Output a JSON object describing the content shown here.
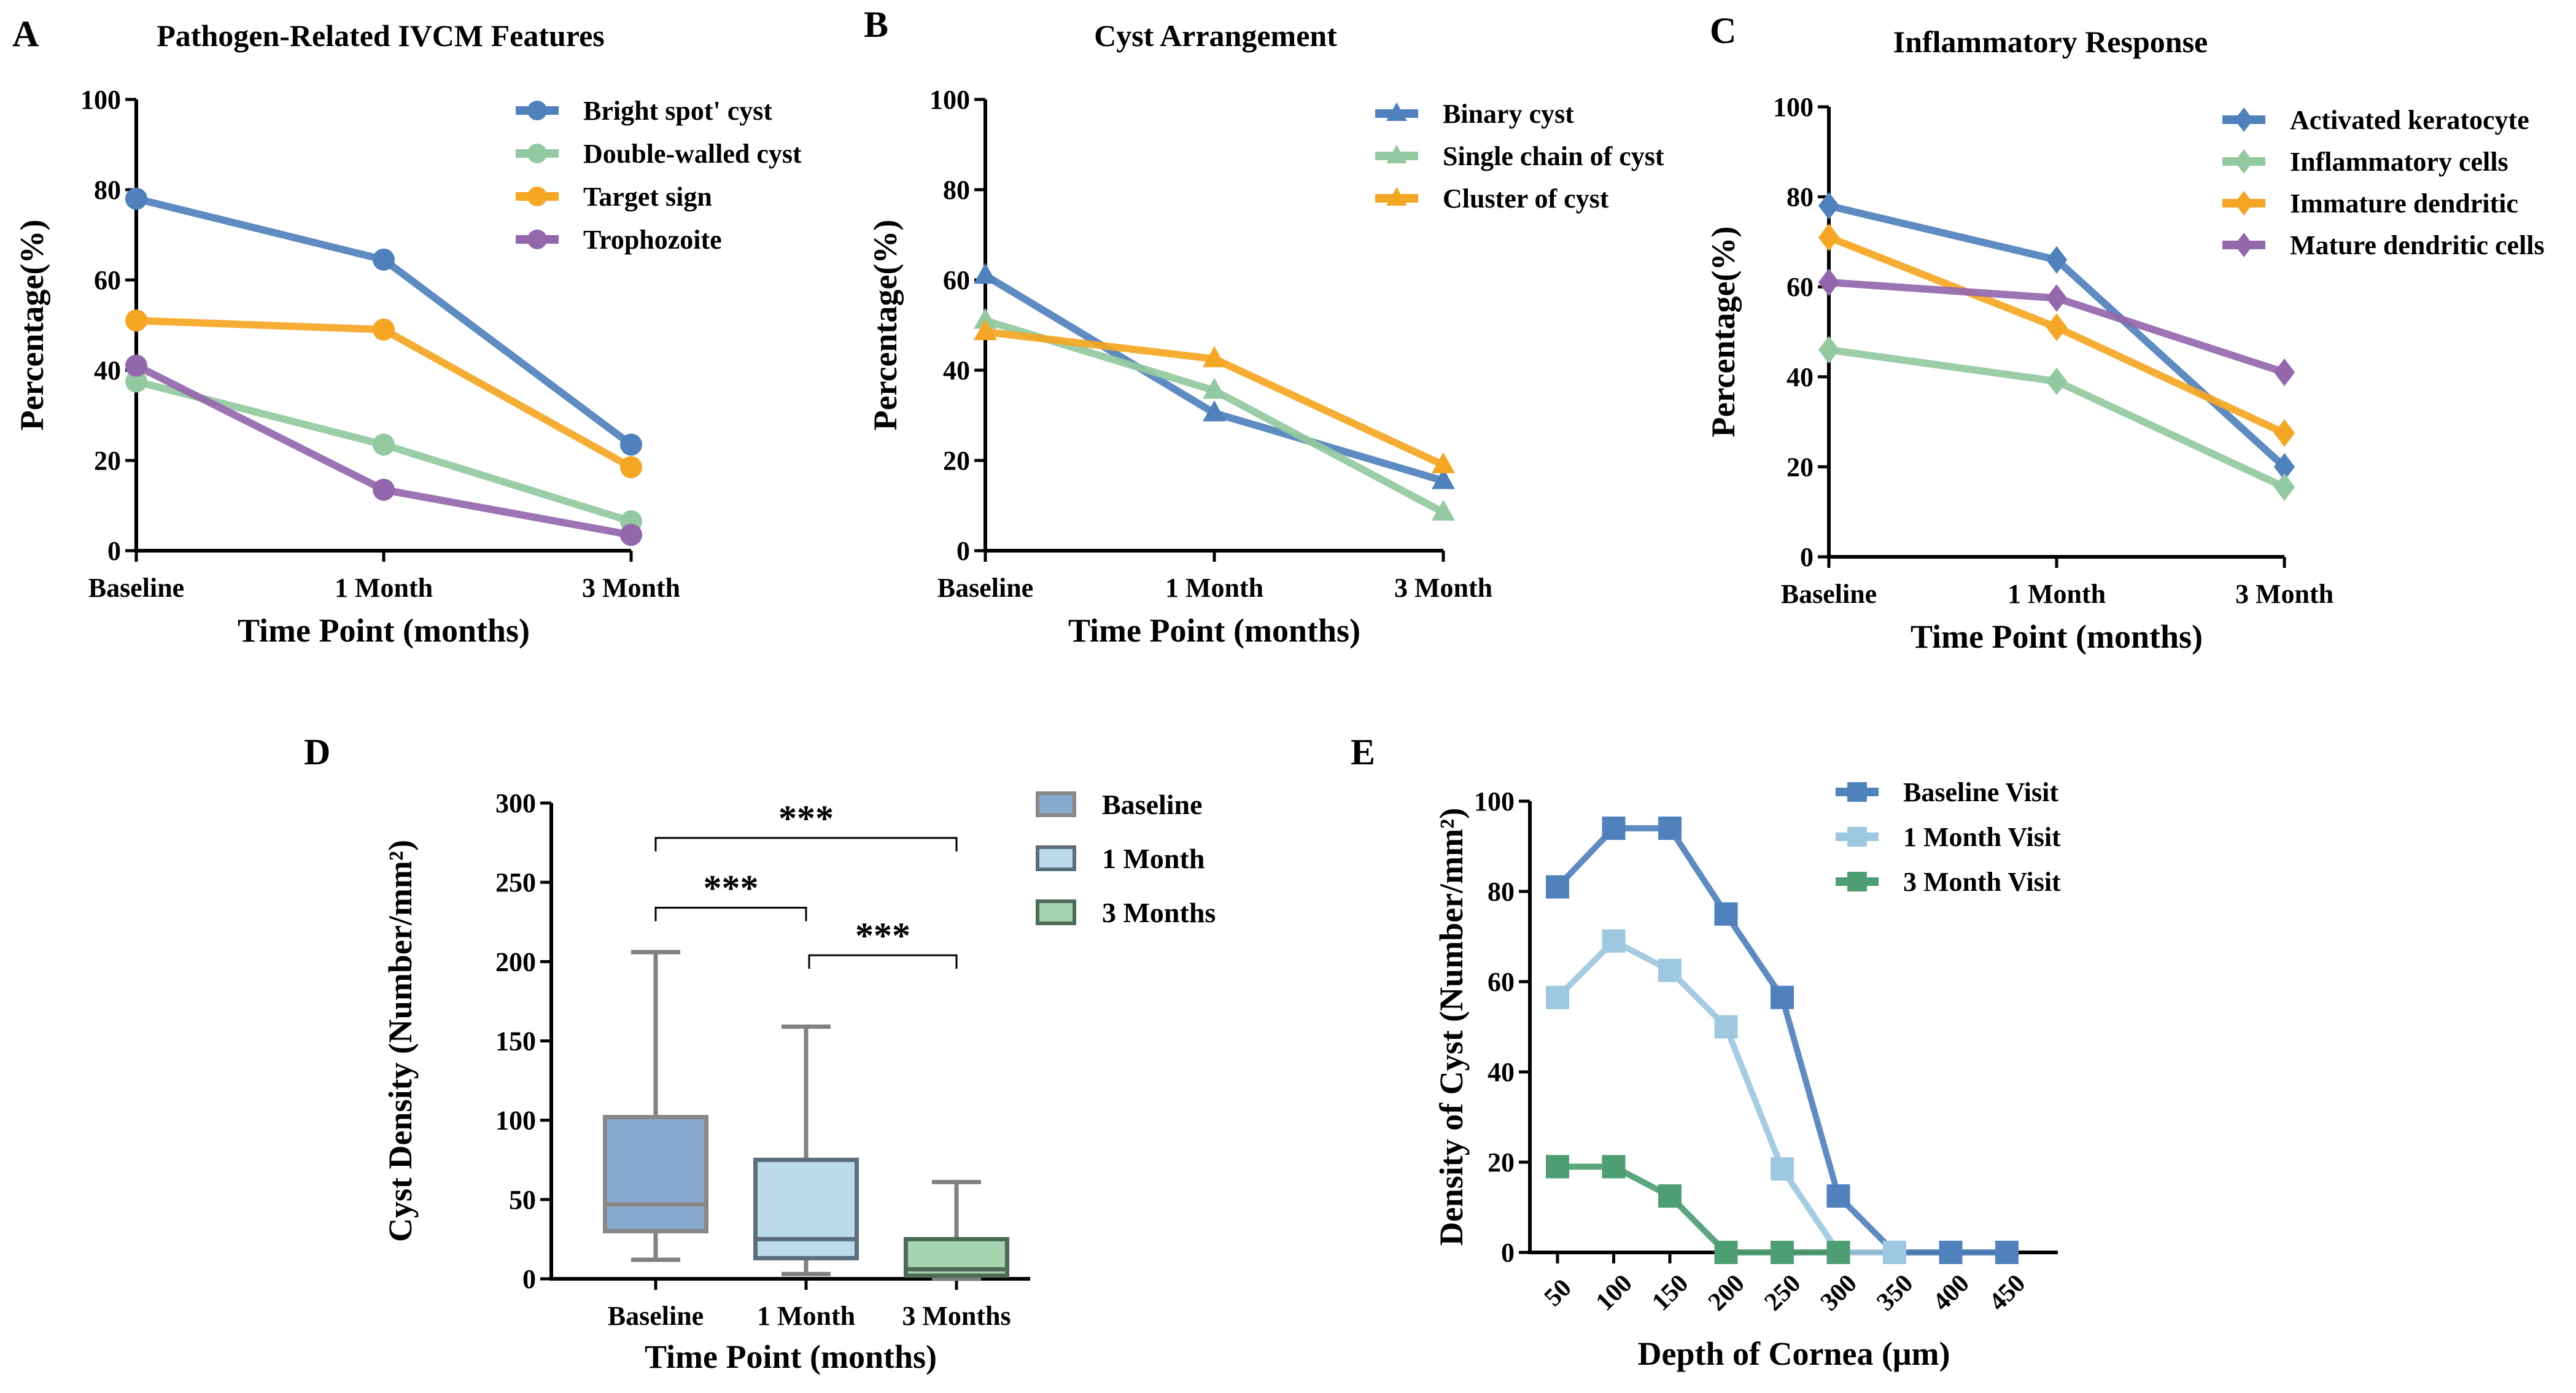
{
  "chart_data": [
    {
      "panel": "A",
      "type": "line",
      "title": "Pathogen-Related IVCM Features",
      "xlabel": "Time Point (months)",
      "ylabel": "Percentage(%)",
      "categories": [
        "Baseline",
        "1 Month",
        "3 Month"
      ],
      "ylim": [
        0,
        100
      ],
      "yticks": [
        0,
        20,
        40,
        60,
        80,
        100
      ],
      "marker": "circle",
      "legend": "top-right",
      "series": [
        {
          "name": "Bright spot' cyst",
          "color": "#4F81BD",
          "values": [
            78,
            64.5,
            23.5
          ]
        },
        {
          "name": "Double-walled cyst",
          "color": "#93C9A0",
          "values": [
            37.5,
            23.5,
            6.5
          ]
        },
        {
          "name": "Target sign",
          "color": "#F5A623",
          "values": [
            51,
            49,
            18.5
          ]
        },
        {
          "name": "Trophozoite",
          "color": "#9467AD",
          "values": [
            41,
            13.5,
            3.5
          ]
        }
      ]
    },
    {
      "panel": "B",
      "type": "line",
      "title": "Cyst Arrangement",
      "xlabel": "Time Point (months)",
      "ylabel": "Percentage(%)",
      "categories": [
        "Baseline",
        "1 Month",
        "3 Month"
      ],
      "ylim": [
        0,
        100
      ],
      "yticks": [
        0,
        20,
        40,
        60,
        80,
        100
      ],
      "marker": "triangle",
      "legend": "top-right",
      "series": [
        {
          "name": "Binary cyst",
          "color": "#4F81BD",
          "values": [
            61,
            30.5,
            15.5
          ]
        },
        {
          "name": "Single chain of cyst",
          "color": "#93C9A0",
          "values": [
            51,
            35.5,
            8.5
          ]
        },
        {
          "name": "Cluster of cyst",
          "color": "#F5A623",
          "values": [
            48.5,
            42.5,
            19
          ]
        }
      ]
    },
    {
      "panel": "C",
      "type": "line",
      "title": "Inflammatory Response",
      "xlabel": "Time Point (months)",
      "ylabel": "Percentage(%)",
      "categories": [
        "Baseline",
        "1 Month",
        "3 Month"
      ],
      "ylim": [
        0,
        100
      ],
      "yticks": [
        0,
        20,
        40,
        60,
        80,
        100
      ],
      "marker": "diamond",
      "legend": "top-right",
      "series": [
        {
          "name": "Activated keratocyte",
          "color": "#4F81BD",
          "values": [
            78,
            66,
            20
          ]
        },
        {
          "name": "Inflammatory cells",
          "color": "#93C9A0",
          "values": [
            46,
            39,
            15.5
          ]
        },
        {
          "name": "Immature dendritic",
          "color": "#F5A623",
          "values": [
            71,
            51,
            27.5
          ]
        },
        {
          "name": "Mature dendritic cells",
          "color": "#9467AD",
          "values": [
            61,
            57.5,
            41
          ]
        }
      ]
    },
    {
      "panel": "D",
      "type": "box",
      "title": "",
      "xlabel": "Time Point (months)",
      "ylabel": "Cyst Density (Number/mm²)",
      "categories": [
        "Baseline",
        "1 Month",
        "3 Months"
      ],
      "ylim": [
        0,
        300
      ],
      "yticks": [
        0,
        50,
        100,
        150,
        200,
        250,
        300
      ],
      "legend": "top-right",
      "boxes": [
        {
          "name": "Baseline",
          "fill": "#88A9D0",
          "stroke": "#888888",
          "min": 12,
          "q1": 30,
          "median": 47,
          "q3": 102,
          "max": 206
        },
        {
          "name": "1 Month",
          "fill": "#BBDAEA",
          "stroke": "#5A6E7E",
          "min": 3,
          "q1": 13,
          "median": 25,
          "q3": 75,
          "max": 159
        },
        {
          "name": "3 Months",
          "fill": "#A3D4AE",
          "stroke": "#4E6B58",
          "min": 0,
          "q1": 2,
          "median": 6,
          "q3": 25,
          "max": 61
        }
      ],
      "significance": [
        {
          "from": 0,
          "to": 2,
          "label": "***",
          "level": 278
        },
        {
          "from": 0,
          "to": 1,
          "label": "***",
          "level": 234
        },
        {
          "from": 1,
          "to": 2,
          "label": "***",
          "level": 204
        }
      ]
    },
    {
      "panel": "E",
      "type": "line",
      "title": "",
      "xlabel": "Depth of Cornea (μm)",
      "ylabel": "Density of Cyst (Number/mm²)",
      "categories": [
        "50",
        "100",
        "150",
        "200",
        "250",
        "300",
        "350",
        "400",
        "450"
      ],
      "ylim": [
        0,
        100
      ],
      "yticks": [
        0,
        20,
        40,
        60,
        80,
        100
      ],
      "marker": "square",
      "legend": "top-right",
      "series": [
        {
          "name": "Baseline Visit",
          "color": "#4F81BD",
          "values": [
            81,
            94,
            94,
            75,
            56.5,
            12.5,
            0,
            0,
            0
          ]
        },
        {
          "name": "1 Month Visit",
          "color": "#9DC8E0",
          "values": [
            56.5,
            69,
            62.5,
            50,
            18.5,
            0,
            0,
            null,
            null
          ]
        },
        {
          "name": "3 Month Visit",
          "color": "#4E9E73",
          "values": [
            19,
            19,
            12.5,
            0,
            0,
            0,
            null,
            null,
            null
          ]
        }
      ]
    }
  ]
}
